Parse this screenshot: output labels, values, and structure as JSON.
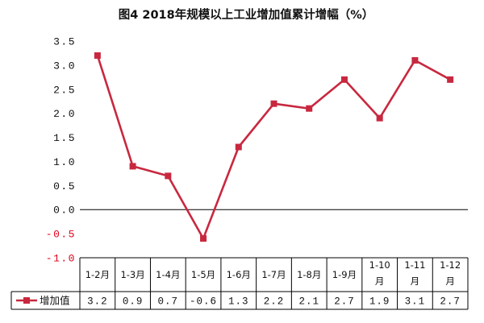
{
  "chart_data": {
    "type": "line",
    "title": "图4  2018年规模以上工业增加值累计增幅（%）",
    "xlabel": "",
    "ylabel": "",
    "ylim": [
      -1.0,
      3.5
    ],
    "yticks": [
      "3.5",
      "3.0",
      "2.5",
      "2.0",
      "1.5",
      "1.0",
      "0.5",
      "0.0",
      "-0.5",
      "-1.0"
    ],
    "ytick_values": [
      3.5,
      3.0,
      2.5,
      2.0,
      1.5,
      1.0,
      0.5,
      0.0,
      -0.5,
      -1.0
    ],
    "categories": [
      "1-2月",
      "1-3月",
      "1-4月",
      "1-5月",
      "1-6月",
      "1-7月",
      "1-8月",
      "1-9月",
      "1-10月",
      "1-11月",
      "1-12月"
    ],
    "series": [
      {
        "name": "增加值",
        "values": [
          3.2,
          0.9,
          0.7,
          -0.6,
          1.3,
          2.2,
          2.1,
          2.7,
          1.9,
          3.1,
          2.7
        ],
        "labels": [
          "3.2",
          "0.9",
          "0.7",
          "-0.6",
          "1.3",
          "2.2",
          "2.1",
          "2.7",
          "1.9",
          "3.1",
          "2.7"
        ],
        "color": "#c8283f"
      }
    ],
    "grid": false,
    "legend": "table-left",
    "colors": {
      "line": "#c8283f",
      "axis": "#000000",
      "negative_tick": "#e0001b",
      "tick": "#111111"
    }
  }
}
